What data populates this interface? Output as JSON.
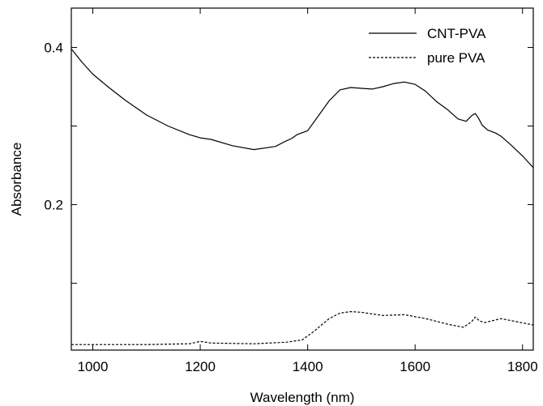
{
  "chart_data": {
    "type": "line",
    "xlabel": "Wavelength (nm)",
    "ylabel": "Absorbance",
    "xlim": [
      960,
      1820
    ],
    "ylim": [
      0.015,
      0.45
    ],
    "x_ticks": [
      1000,
      1200,
      1400,
      1600,
      1800
    ],
    "y_ticks": [
      0.2,
      0.4
    ],
    "y_tick_labels": [
      "0.2",
      "0.4"
    ],
    "y_minor_ticks": [
      0.1,
      0.3
    ],
    "grid": false,
    "legend_position": "top-right",
    "series": [
      {
        "name": "CNT-PVA",
        "style": "solid",
        "x": [
          960,
          980,
          1000,
          1030,
          1060,
          1100,
          1140,
          1180,
          1200,
          1220,
          1260,
          1300,
          1340,
          1360,
          1370,
          1380,
          1400,
          1420,
          1440,
          1460,
          1480,
          1500,
          1520,
          1540,
          1560,
          1580,
          1600,
          1620,
          1640,
          1660,
          1680,
          1695,
          1705,
          1712,
          1718,
          1725,
          1735,
          1750,
          1760,
          1780,
          1800,
          1820
        ],
        "y": [
          0.398,
          0.381,
          0.366,
          0.349,
          0.333,
          0.314,
          0.3,
          0.289,
          0.285,
          0.283,
          0.275,
          0.27,
          0.274,
          0.281,
          0.284,
          0.289,
          0.294,
          0.313,
          0.332,
          0.346,
          0.349,
          0.348,
          0.347,
          0.35,
          0.354,
          0.356,
          0.353,
          0.344,
          0.331,
          0.321,
          0.309,
          0.306,
          0.313,
          0.316,
          0.31,
          0.301,
          0.295,
          0.291,
          0.287,
          0.275,
          0.262,
          0.247
        ]
      },
      {
        "name": "pure PVA",
        "style": "dashed",
        "x": [
          960,
          1000,
          1100,
          1180,
          1200,
          1220,
          1300,
          1360,
          1390,
          1410,
          1440,
          1460,
          1480,
          1500,
          1540,
          1580,
          1620,
          1660,
          1690,
          1705,
          1712,
          1720,
          1730,
          1760,
          1790,
          1820
        ],
        "y": [
          0.022,
          0.022,
          0.022,
          0.023,
          0.026,
          0.024,
          0.023,
          0.025,
          0.028,
          0.038,
          0.055,
          0.062,
          0.064,
          0.063,
          0.059,
          0.06,
          0.055,
          0.048,
          0.044,
          0.051,
          0.057,
          0.052,
          0.05,
          0.055,
          0.051,
          0.047
        ]
      }
    ]
  }
}
